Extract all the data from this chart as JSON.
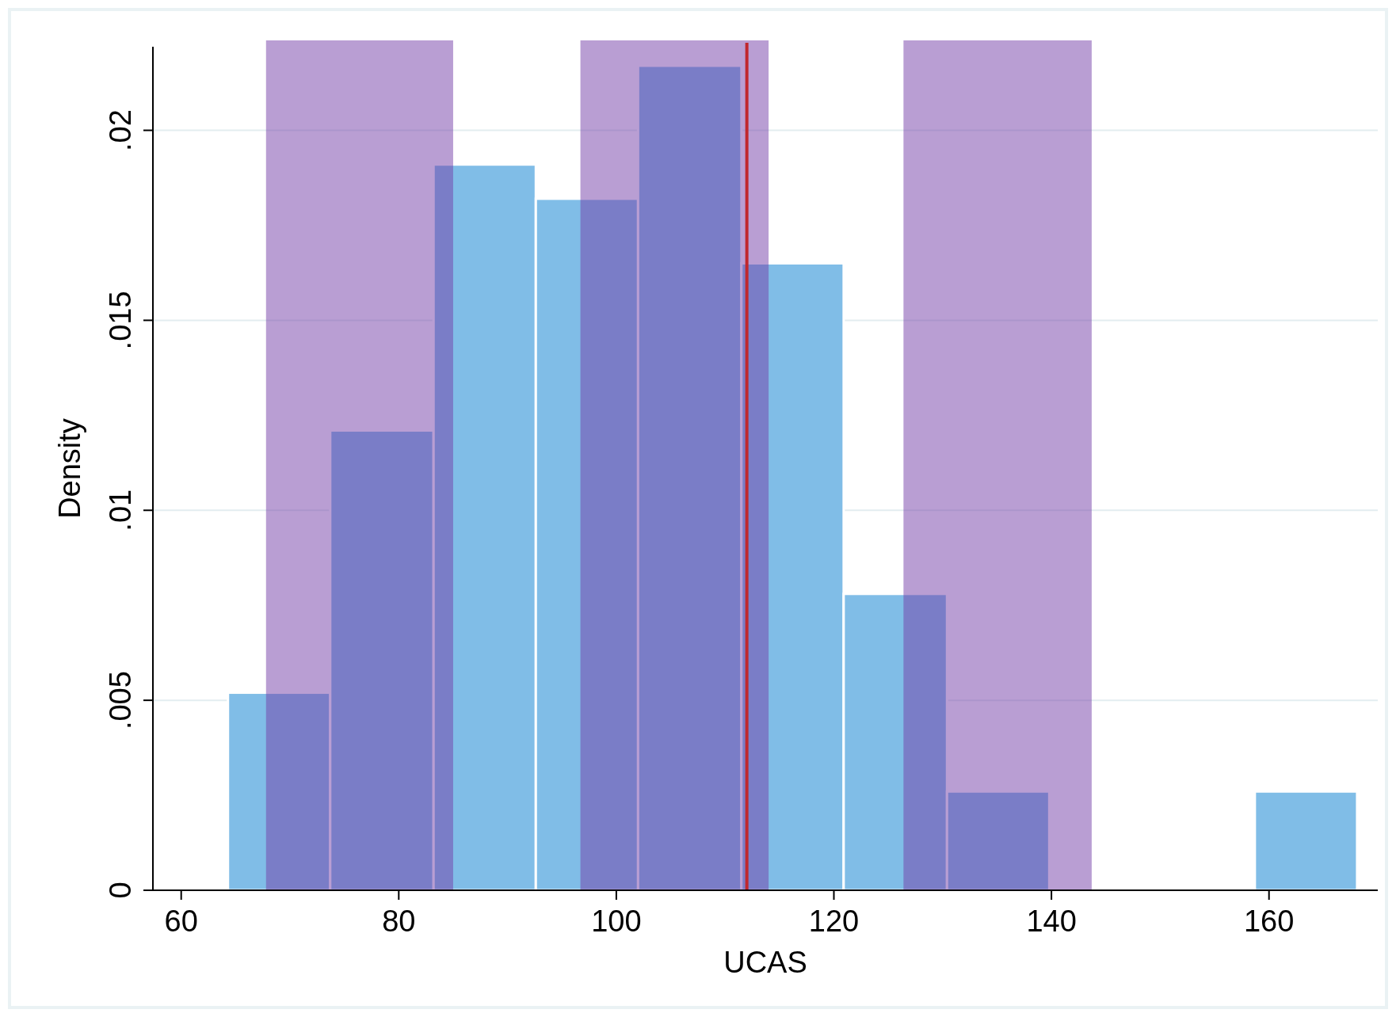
{
  "chart_data": {
    "type": "histogram",
    "xlabel": "UCAS",
    "ylabel": "Density",
    "bins": [
      64.3,
      73.7,
      83.2,
      92.6,
      102.0,
      111.5,
      120.9,
      130.4,
      139.8,
      158.7,
      168.1
    ],
    "values": [
      0.0052,
      0.0121,
      0.0191,
      0.0182,
      0.0217,
      0.0165,
      0.0078,
      0.0026,
      0,
      0.0026
    ],
    "color": "#80bde7",
    "xlim": [
      57.4,
      170
    ],
    "xticks": [
      60,
      80,
      100,
      120,
      140,
      160
    ],
    "ylim": [
      0,
      0.0222
    ],
    "yticks": [
      0,
      {
        "value": 0.005,
        "label": ".005"
      },
      {
        "value": 0.01,
        "label": ".01"
      },
      {
        "value": 0.015,
        "label": ".015"
      },
      {
        "value": 0.02,
        "label": ".02"
      }
    ],
    "grid": "y",
    "bands": [
      {
        "axis": "x",
        "from": 67.8,
        "to": 85.0,
        "color": "#743da7"
      },
      {
        "axis": "x",
        "from": 96.7,
        "to": 114.0,
        "color": "#743da7"
      },
      {
        "axis": "x",
        "from": 126.4,
        "to": 143.7,
        "color": "#743da7"
      }
    ],
    "ref_lines": [
      {
        "axis": "x",
        "value": 112.0,
        "color": "#c1272d"
      }
    ]
  }
}
